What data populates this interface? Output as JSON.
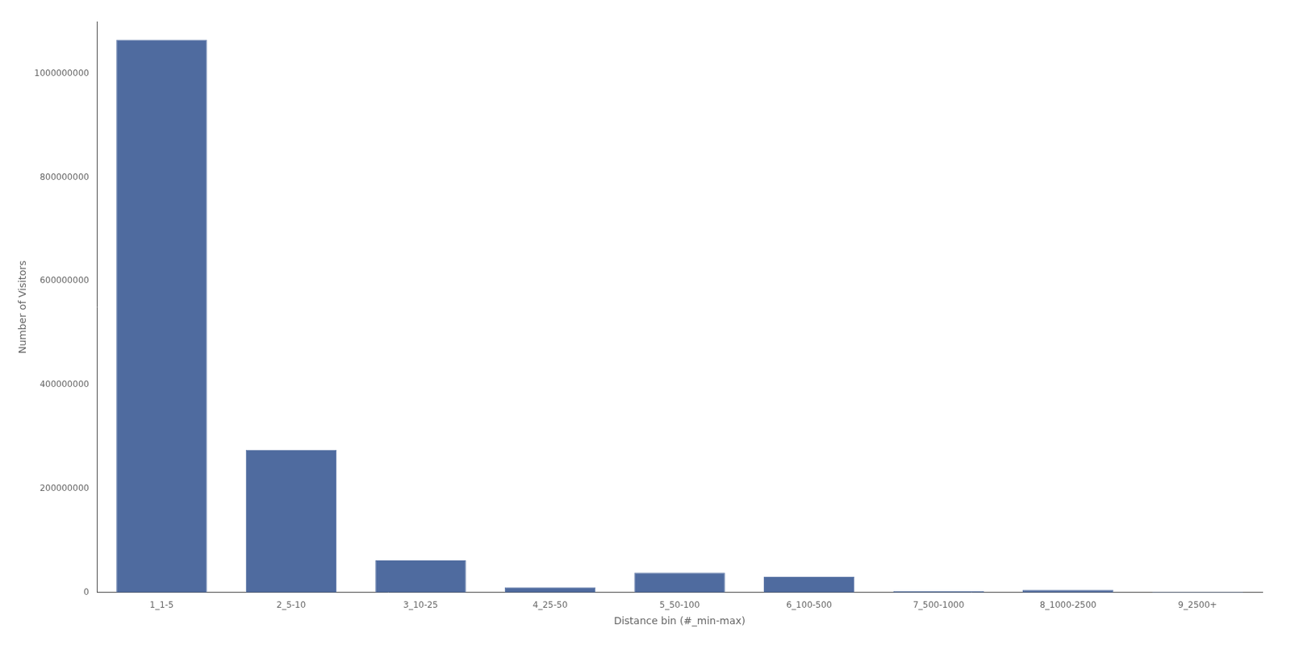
{
  "chart_data": {
    "type": "bar",
    "categories": [
      "1_1-5",
      "2_5-10",
      "3_10-25",
      "4_25-50",
      "5_50-100",
      "6_100-500",
      "7_500-1000",
      "8_1000-2500",
      "9_2500+"
    ],
    "values": [
      1065000000,
      275000000,
      62000000,
      10000000,
      38000000,
      30000000,
      3000000,
      5000000,
      1000000
    ],
    "color": "#4f6b9f",
    "xlabel": "Distance bin (#_min-max)",
    "ylabel": "Number of Visitors",
    "ylim": [
      0,
      1100000000
    ],
    "yticks": [
      0,
      200000000,
      400000000,
      600000000,
      800000000,
      1000000000
    ],
    "grid": false
  }
}
